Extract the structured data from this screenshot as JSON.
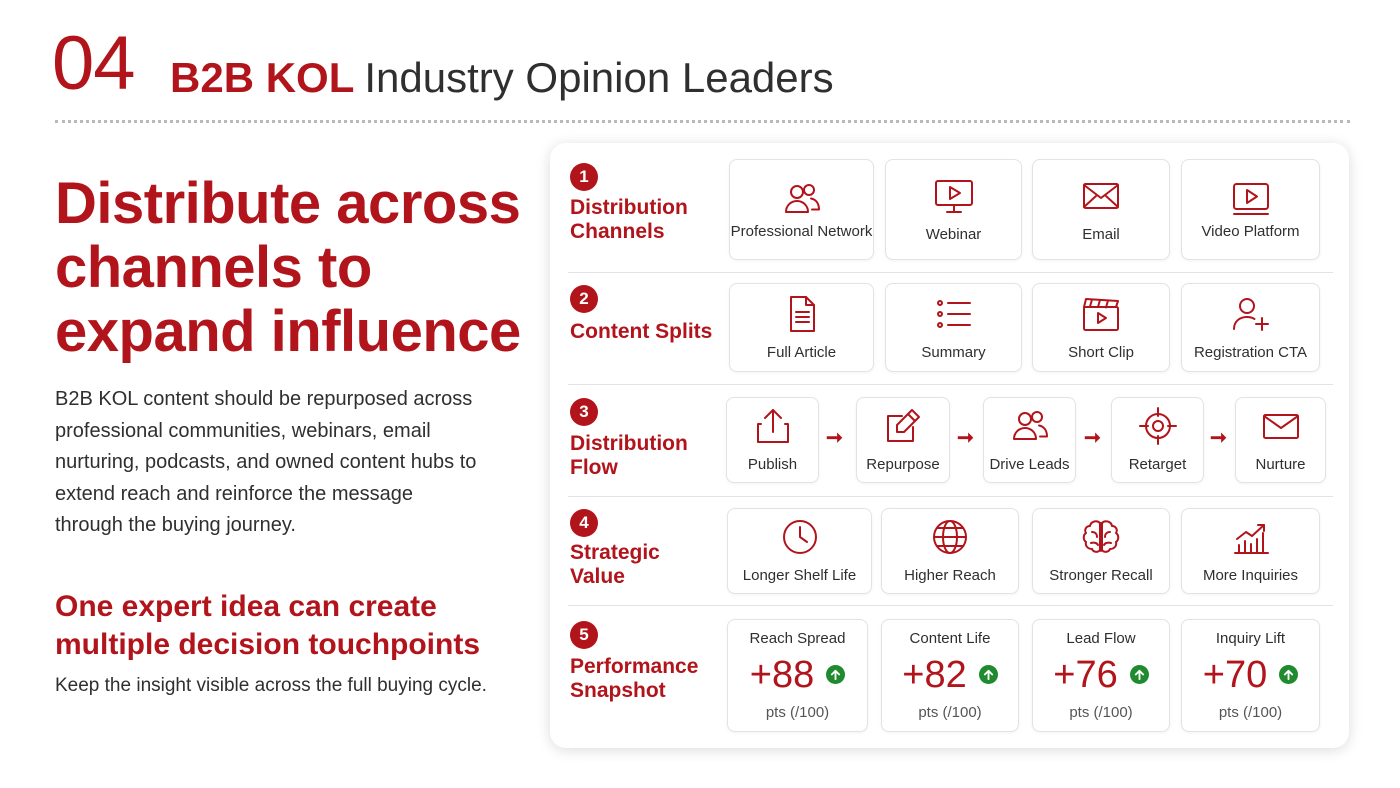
{
  "header": {
    "number": "04",
    "title_accent": "B2B KOL",
    "title_rest": "Industry Opinion Leaders"
  },
  "left": {
    "headline": "Distribute across channels to expand influence",
    "description": "B2B KOL content should be repurposed across professional communities, webinars, email nurturing, podcasts, and owned content hubs to extend reach and reinforce the message through the buying journey.",
    "subheadline": "One expert idea can create multiple decision touchpoints",
    "note": "Keep the insight visible across the full buying cycle."
  },
  "colors": {
    "accent": "#b2141b",
    "positive": "#1f8a2e"
  },
  "rows": [
    {
      "number": "1",
      "label": "Distribution Channels",
      "items": [
        {
          "label": "Professional Network",
          "icon": "people-icon"
        },
        {
          "label": "Webinar",
          "icon": "monitor-play-icon"
        },
        {
          "label": "Email",
          "icon": "envelope-icon"
        },
        {
          "label": "Video Platform",
          "icon": "video-play-icon"
        }
      ]
    },
    {
      "number": "2",
      "label": "Content Splits",
      "items": [
        {
          "label": "Full Article",
          "icon": "document-icon"
        },
        {
          "label": "Summary",
          "icon": "list-icon"
        },
        {
          "label": "Short Clip",
          "icon": "clapperboard-icon"
        },
        {
          "label": "Registration CTA",
          "icon": "add-user-icon"
        }
      ]
    },
    {
      "number": "3",
      "label": "Distribution Flow",
      "items": [
        {
          "label": "Publish",
          "icon": "upload-icon"
        },
        {
          "label": "Repurpose",
          "icon": "edit-icon"
        },
        {
          "label": "Drive Leads",
          "icon": "people-icon"
        },
        {
          "label": "Retarget",
          "icon": "target-icon"
        },
        {
          "label": "Nurture",
          "icon": "envelope-icon"
        }
      ]
    },
    {
      "number": "4",
      "label": "Strategic Value",
      "items": [
        {
          "label": "Longer Shelf Life",
          "icon": "clock-icon"
        },
        {
          "label": "Higher Reach",
          "icon": "globe-icon"
        },
        {
          "label": "Stronger Recall",
          "icon": "brain-icon"
        },
        {
          "label": "More Inquiries",
          "icon": "growth-chart-icon"
        }
      ]
    },
    {
      "number": "5",
      "label": "Performance Snapshot",
      "metrics": [
        {
          "title": "Reach Spread",
          "value": "+88",
          "unit": "pts (/100)",
          "score": 88
        },
        {
          "title": "Content Life",
          "value": "+82",
          "unit": "pts (/100)",
          "score": 82
        },
        {
          "title": "Lead Flow",
          "value": "+76",
          "unit": "pts (/100)",
          "score": 76
        },
        {
          "title": "Inquiry Lift",
          "value": "+70",
          "unit": "pts (/100)",
          "score": 70
        }
      ]
    }
  ]
}
